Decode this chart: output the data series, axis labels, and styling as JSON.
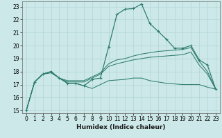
{
  "title": "",
  "xlabel": "Humidex (Indice chaleur)",
  "ylabel": "",
  "bg_color": "#cde8e8",
  "line_color": "#2e7d6e",
  "grid_color": "#b0d4d4",
  "xlim": [
    -0.5,
    23.5
  ],
  "ylim": [
    14.8,
    23.4
  ],
  "xticks": [
    0,
    1,
    2,
    3,
    4,
    5,
    6,
    7,
    8,
    9,
    10,
    11,
    12,
    13,
    14,
    15,
    16,
    17,
    18,
    19,
    20,
    21,
    22,
    23
  ],
  "yticks": [
    15,
    16,
    17,
    18,
    19,
    20,
    21,
    22,
    23
  ],
  "series": [
    {
      "x": [
        0,
        1,
        2,
        3,
        4,
        5,
        6,
        7,
        8,
        9,
        10,
        11,
        12,
        13,
        14,
        15,
        16,
        17,
        18,
        19,
        20,
        21,
        22,
        23
      ],
      "y": [
        15.0,
        17.2,
        17.8,
        18.0,
        17.5,
        17.1,
        17.1,
        16.9,
        17.4,
        17.5,
        19.9,
        22.4,
        22.8,
        22.85,
        23.2,
        21.7,
        21.1,
        20.5,
        19.8,
        19.8,
        20.0,
        18.9,
        18.5,
        16.65
      ],
      "has_markers": true
    },
    {
      "x": [
        0,
        1,
        2,
        3,
        4,
        5,
        6,
        7,
        8,
        9,
        10,
        11,
        12,
        13,
        14,
        15,
        16,
        17,
        18,
        19,
        20,
        21,
        22,
        23
      ],
      "y": [
        15.0,
        17.2,
        17.8,
        17.9,
        17.5,
        17.3,
        17.3,
        17.3,
        17.6,
        17.9,
        18.6,
        18.9,
        19.0,
        19.2,
        19.35,
        19.45,
        19.55,
        19.6,
        19.65,
        19.7,
        19.85,
        18.8,
        18.0,
        16.65
      ],
      "has_markers": false
    },
    {
      "x": [
        0,
        1,
        2,
        3,
        4,
        5,
        6,
        7,
        8,
        9,
        10,
        11,
        12,
        13,
        14,
        15,
        16,
        17,
        18,
        19,
        20,
        21,
        22,
        23
      ],
      "y": [
        15.0,
        17.2,
        17.8,
        18.0,
        17.5,
        17.2,
        17.2,
        17.2,
        17.5,
        17.8,
        18.4,
        18.6,
        18.75,
        18.9,
        19.0,
        19.1,
        19.15,
        19.2,
        19.25,
        19.3,
        19.5,
        18.5,
        17.8,
        16.65
      ],
      "has_markers": false
    },
    {
      "x": [
        0,
        1,
        2,
        3,
        4,
        5,
        6,
        7,
        8,
        9,
        10,
        11,
        12,
        13,
        14,
        15,
        16,
        17,
        18,
        19,
        20,
        21,
        22,
        23
      ],
      "y": [
        15.0,
        17.2,
        17.8,
        18.0,
        17.5,
        17.1,
        17.1,
        16.9,
        16.7,
        17.0,
        17.3,
        17.35,
        17.4,
        17.5,
        17.5,
        17.3,
        17.2,
        17.1,
        17.05,
        17.0,
        17.0,
        17.0,
        16.8,
        16.65
      ],
      "has_markers": false
    }
  ]
}
